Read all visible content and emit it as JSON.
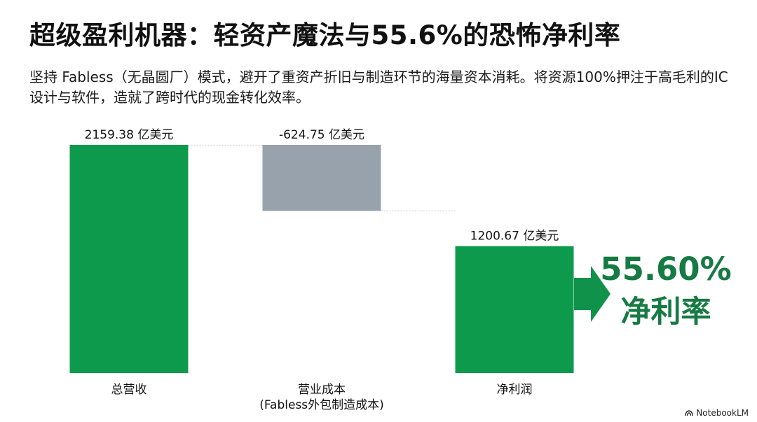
{
  "title": "超级盈利机器：轻资产魔法与55.6%的恐怖净利率",
  "subtitle": "坚持 Fabless（无晶圆厂）模式，避开了重资产折旧与制造环节的海量资本消耗。将资源100%押注于高毛利的IC设计与软件，造就了跨时代的现金转化效率。",
  "chart_data": {
    "type": "bar",
    "subtype": "waterfall",
    "unit_label": "亿美元",
    "categories": [
      "总营收",
      "营业成本\n(Fabless外包制造成本)",
      "净利润"
    ],
    "values": [
      2159.38,
      -624.75,
      1200.67
    ],
    "data_labels": [
      "2159.38 亿美元",
      "-624.75 亿美元",
      "1200.67 亿美元"
    ],
    "bar_kinds": [
      "total",
      "decrease",
      "total"
    ],
    "colors": {
      "total": "#0e9a4c",
      "decrease": "#98a2ad",
      "connector": "#bfbfbf"
    },
    "grid": false,
    "annotation": {
      "value": "55.60%",
      "label": "净利率",
      "color": "#167a43",
      "arrow_color": "#11924a"
    }
  },
  "watermark": "NotebookLM"
}
